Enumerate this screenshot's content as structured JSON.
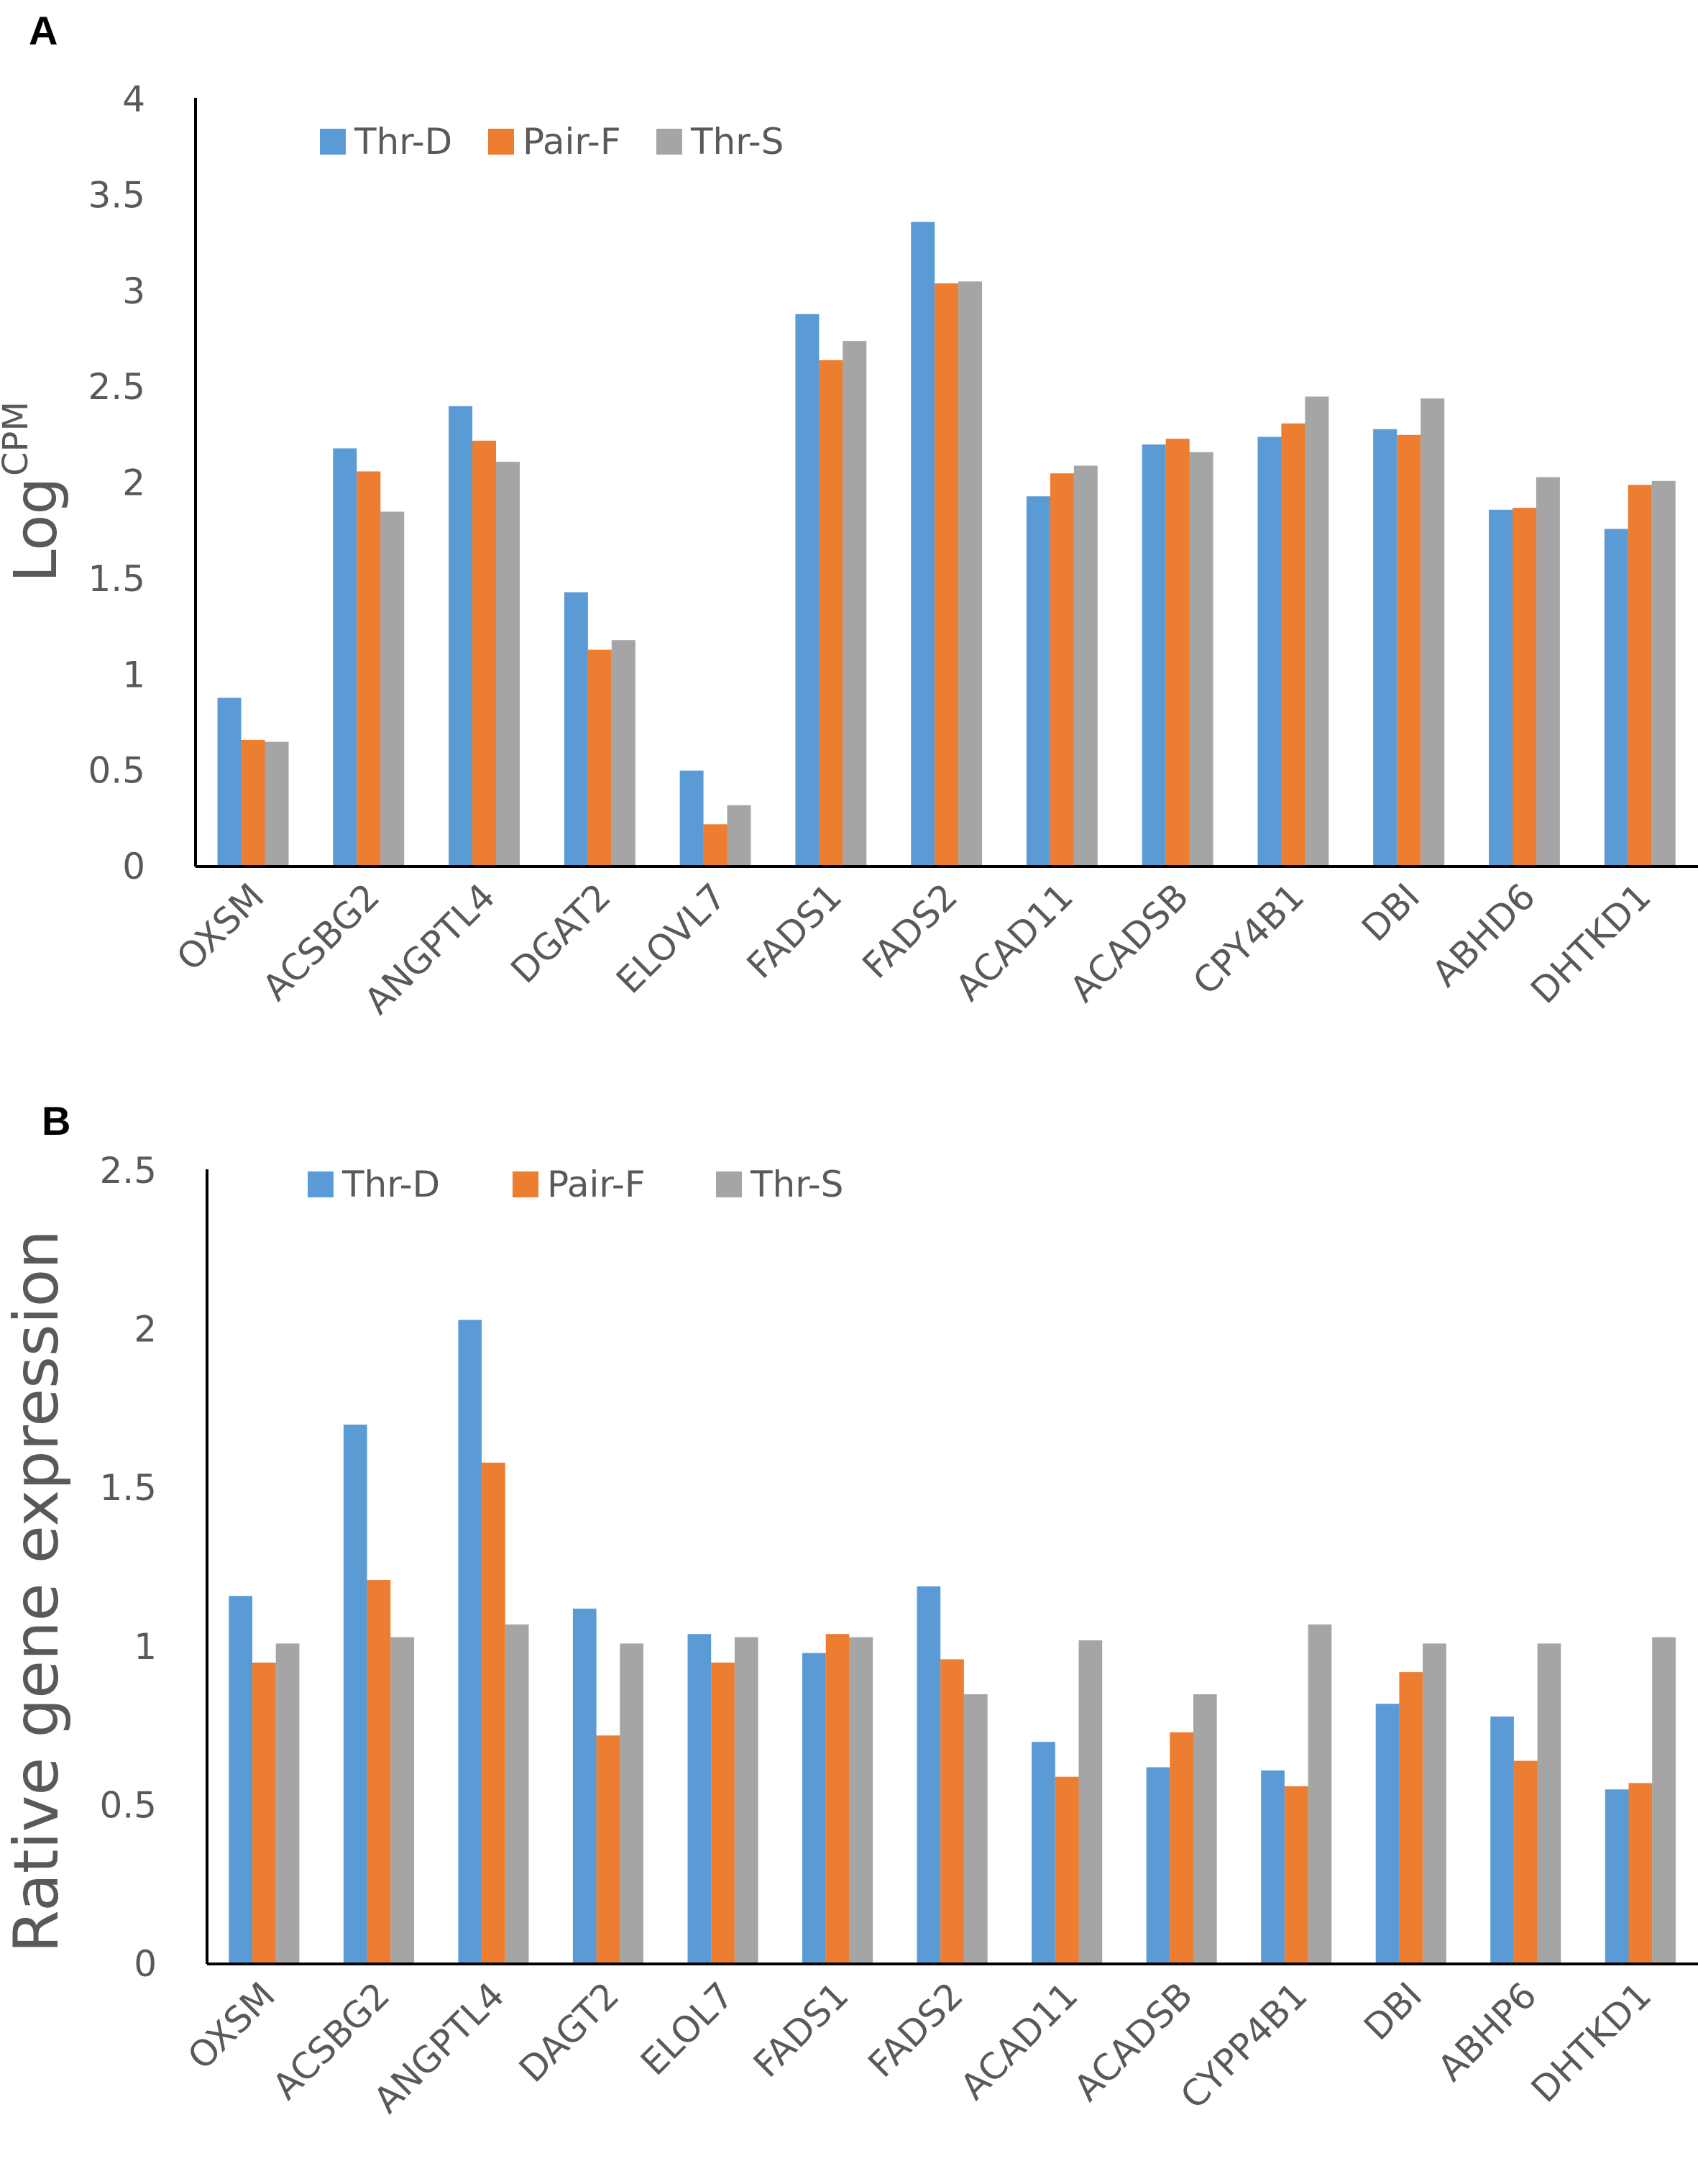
{
  "chart_data": [
    {
      "panel": "A",
      "type": "bar",
      "title": "",
      "xlabel": "",
      "ylabel": "Log",
      "ylabel_superscript": "CPM",
      "ylim": [
        0,
        4
      ],
      "yticks": [
        "0",
        "0.5",
        "1",
        "1.5",
        "2",
        "2.5",
        "3",
        "3.5",
        "4"
      ],
      "legend_position": "top-left",
      "categories": [
        "OXSM",
        "ACSBG2",
        "ANGPTL4",
        "DGAT2",
        "ELOVL7",
        "FADS1",
        "FADS2",
        "ACAD11",
        "ACADSB",
        "CPY4B1",
        "DBI",
        "ABHD6",
        "DHTKD1"
      ],
      "series": [
        {
          "name": "Thr-D",
          "color": "#5B9BD5",
          "values": [
            0.88,
            2.18,
            2.4,
            1.43,
            0.5,
            2.88,
            3.36,
            1.93,
            2.2,
            2.24,
            2.28,
            1.86,
            1.76
          ]
        },
        {
          "name": "Pair-F",
          "color": "#ED7D31",
          "values": [
            0.66,
            2.06,
            2.22,
            1.13,
            0.22,
            2.64,
            3.04,
            2.05,
            2.23,
            2.31,
            2.25,
            1.87,
            1.99
          ]
        },
        {
          "name": "Thr-S",
          "color": "#A5A5A5",
          "values": [
            0.65,
            1.85,
            2.11,
            1.18,
            0.32,
            2.74,
            3.05,
            2.09,
            2.16,
            2.45,
            2.44,
            2.03,
            2.01
          ]
        }
      ]
    },
    {
      "panel": "B",
      "type": "bar",
      "title": "",
      "xlabel": "",
      "ylabel": "Rative  gene expression",
      "ylim": [
        0,
        2.5
      ],
      "yticks": [
        "0",
        "0.5",
        "1",
        "1.5",
        "2",
        "2.5"
      ],
      "legend_position": "top-left",
      "categories": [
        "OXSM",
        "ACSBG2",
        "ANGPTL4",
        "DAGT2",
        "ELOL7",
        "FADS1",
        "FADS2",
        "ACAD11",
        "ACADSB",
        "CYPP4B1",
        "DBI",
        "ABHP6",
        "DHTKD1"
      ],
      "series": [
        {
          "name": "Thr-D",
          "color": "#5B9BD5",
          "values": [
            1.16,
            1.7,
            2.03,
            1.12,
            1.04,
            0.98,
            1.19,
            0.7,
            0.62,
            0.61,
            0.82,
            0.78,
            0.55
          ]
        },
        {
          "name": "Pair-F",
          "color": "#ED7D31",
          "values": [
            0.95,
            1.21,
            1.58,
            0.72,
            0.95,
            1.04,
            0.96,
            0.59,
            0.73,
            0.56,
            0.92,
            0.64,
            0.57
          ]
        },
        {
          "name": "Thr-S",
          "color": "#A5A5A5",
          "values": [
            1.01,
            1.03,
            1.07,
            1.01,
            1.03,
            1.03,
            0.85,
            1.02,
            0.85,
            1.07,
            1.01,
            1.01,
            1.03
          ]
        }
      ]
    }
  ]
}
